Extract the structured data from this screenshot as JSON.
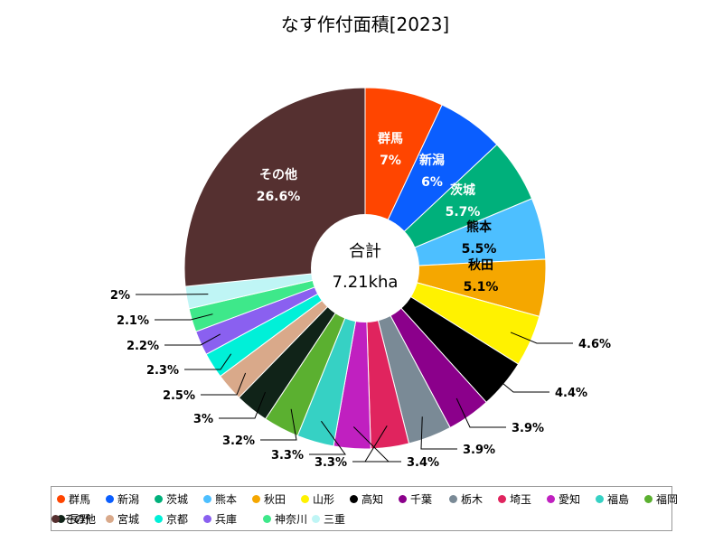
{
  "chart_data": {
    "type": "pie",
    "title": "なす作付面積[2023]",
    "center_label": {
      "line1": "合計",
      "line2": "7.21kha"
    },
    "slices": [
      {
        "name": "群馬",
        "value": 7,
        "label": "7%",
        "color": "#ff4500"
      },
      {
        "name": "新潟",
        "value": 6,
        "label": "6%",
        "color": "#0a5eff"
      },
      {
        "name": "茨城",
        "value": 5.7,
        "label": "5.7%",
        "color": "#00b07b"
      },
      {
        "name": "熊本",
        "value": 5.5,
        "label": "5.5%",
        "color": "#4dbfff"
      },
      {
        "name": "秋田",
        "value": 5.1,
        "label": "5.1%",
        "color": "#f5a700"
      },
      {
        "name": "山形",
        "value": 4.6,
        "label": "4.6%",
        "color": "#fff200"
      },
      {
        "name": "高知",
        "value": 4.4,
        "label": "4.4%",
        "color": "#000000"
      },
      {
        "name": "千葉",
        "value": 3.9,
        "label": "3.9%",
        "color": "#8b008b"
      },
      {
        "name": "栃木",
        "value": 3.9,
        "label": "3.9%",
        "color": "#7a8a96"
      },
      {
        "name": "埼玉",
        "value": 3.4,
        "label": "3.4%",
        "color": "#e0245e"
      },
      {
        "name": "愛知",
        "value": 3.3,
        "label": "3.3%",
        "color": "#c020c0"
      },
      {
        "name": "福島",
        "value": 3.3,
        "label": "3.3%",
        "color": "#36d1c4"
      },
      {
        "name": "福岡",
        "value": 3.2,
        "label": "3.2%",
        "color": "#5bb030"
      },
      {
        "name": "長野",
        "value": 3,
        "label": "3%",
        "color": "#102318"
      },
      {
        "name": "宮城",
        "value": 2.5,
        "label": "2.5%",
        "color": "#d9a98a"
      },
      {
        "name": "京都",
        "value": 2.3,
        "label": "2.3%",
        "color": "#00f0d8"
      },
      {
        "name": "兵庫",
        "value": 2.2,
        "label": "2.2%",
        "color": "#8a60f0"
      },
      {
        "name": "神奈川",
        "value": 2.1,
        "label": "2.1%",
        "color": "#3ee88a"
      },
      {
        "name": "三重",
        "value": 2,
        "label": "2%",
        "color": "#bff5f5"
      },
      {
        "name": "その他",
        "value": 26.6,
        "label": "26.6%",
        "color": "#553030"
      }
    ],
    "legend_position": "bottom"
  }
}
